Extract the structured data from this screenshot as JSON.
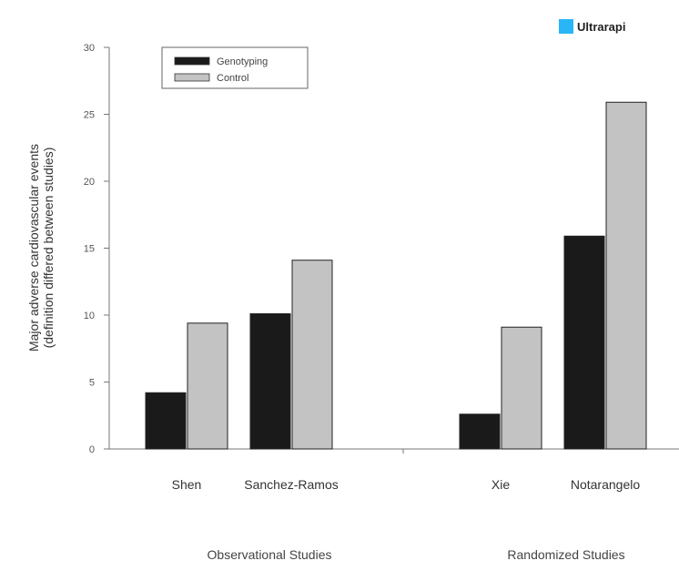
{
  "top_legend": {
    "label": "Ultrarapi",
    "color": "#29b6f6"
  },
  "chart_data": {
    "type": "bar",
    "ylabel_line1": "Major adverse cardiovascular events",
    "ylabel_line2": "(definition differed between studies)",
    "ylim": [
      0,
      30
    ],
    "yticks": [
      "0",
      "5",
      "10",
      "15",
      "20",
      "25",
      "30"
    ],
    "categories": [
      "Shen",
      "Sanchez-Ramos",
      "Xie",
      "Notarangelo"
    ],
    "groups": [
      "Observational Studies",
      "Randomized Studies"
    ],
    "series": [
      {
        "name": "Genotyping",
        "color": "#1a1a1a",
        "values": [
          4.2,
          10.1,
          2.6,
          15.9
        ]
      },
      {
        "name": "Control",
        "color": "#c3c3c3",
        "values": [
          9.4,
          14.1,
          9.1,
          25.9
        ]
      }
    ],
    "legend_position": "top-left"
  }
}
